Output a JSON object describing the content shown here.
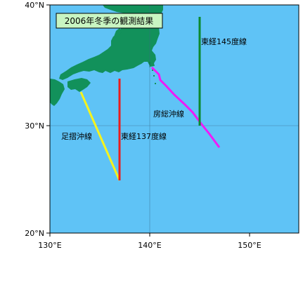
{
  "map": {
    "title": "2006年冬季の観測結果",
    "colors": {
      "sea": "#5fc3f6",
      "land": "#12915b",
      "title_box": "#c8f5c2"
    },
    "longitude_ticks": [
      "130°E",
      "140°E",
      "150°E"
    ],
    "latitude_ticks": [
      "40°N",
      "30°N",
      "20°N"
    ],
    "routes": [
      {
        "name": "足摺沖線",
        "color": "#f6f31d"
      },
      {
        "name": "東経137度線",
        "color": "#ea1d1d"
      },
      {
        "name": "房総沖線",
        "color": "#ef1af7"
      },
      {
        "name": "東経145度線",
        "color": "#0b8a2e"
      }
    ]
  }
}
